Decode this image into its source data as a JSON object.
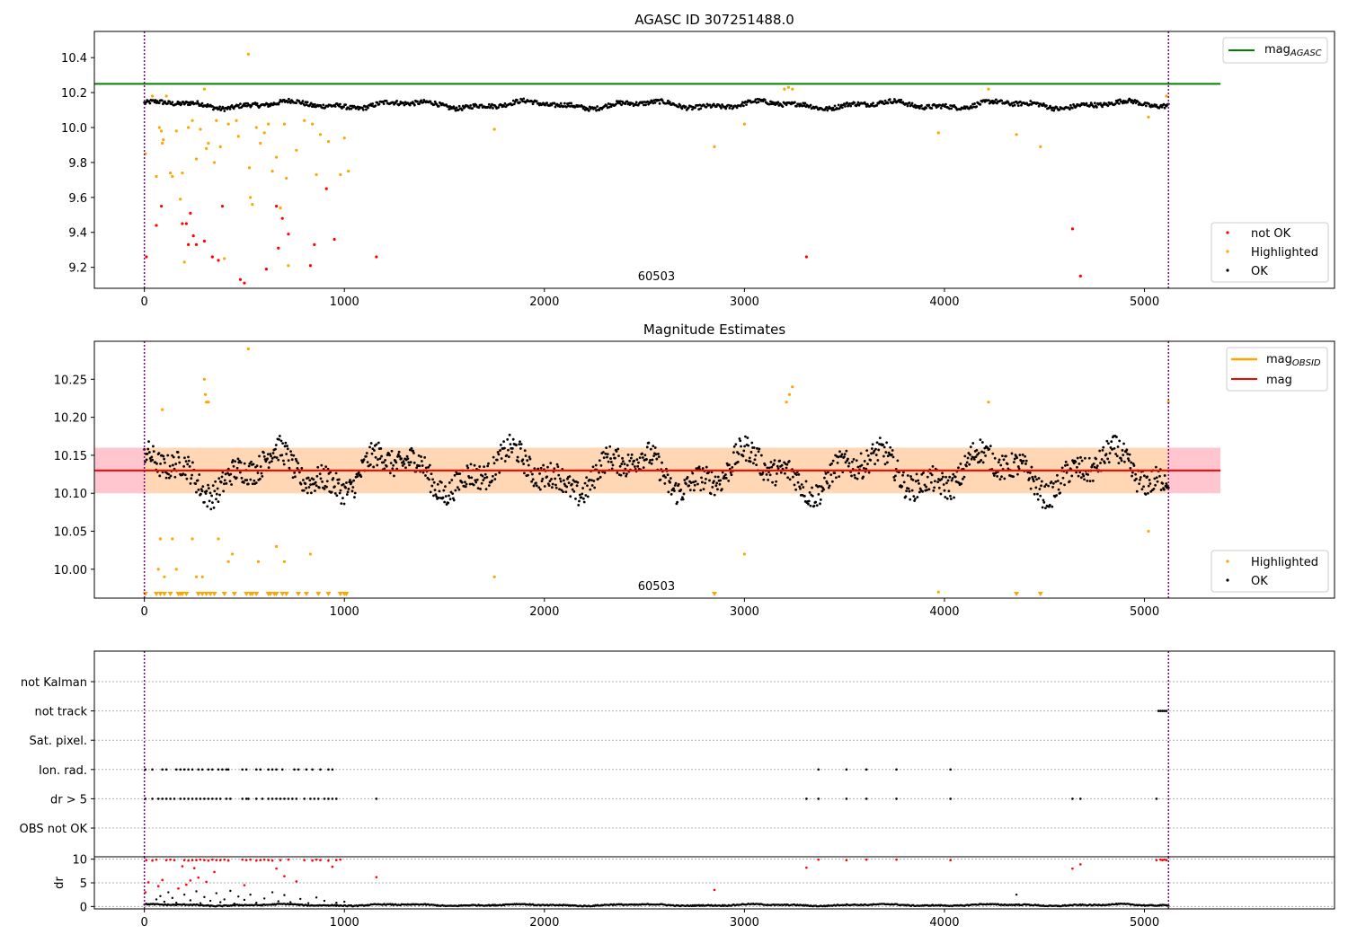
{
  "figure": {
    "top_title": "AGASC ID 307251488.0",
    "middle_title": "Magnitude Estimates"
  },
  "chart_data": [
    {
      "type": "scatter",
      "title": "AGASC ID 307251488.0",
      "xlim": [
        -250,
        5950
      ],
      "ylim": [
        9.08,
        10.55
      ],
      "x_ticks": [
        0,
        1000,
        2000,
        3000,
        4000,
        5000
      ],
      "y_ticks": [
        9.2,
        9.4,
        9.6,
        9.8,
        10.0,
        10.2,
        10.4
      ],
      "y_tick_labels": [
        "9.2",
        "9.4",
        "9.6",
        "9.8",
        "10.0",
        "10.2",
        "10.4"
      ],
      "obsid_boundaries": [
        0,
        5120
      ],
      "obsid_label": {
        "x": 2560,
        "text": "60503"
      },
      "reference_lines": [
        {
          "name": "mag_AGASC",
          "y": 10.25,
          "x_range": [
            -250,
            5380
          ],
          "color": "#008000"
        }
      ],
      "ok_series": {
        "name": "OK",
        "color": "#000000",
        "x_range": [
          0,
          5120
        ],
        "mean": 10.13,
        "wobble": 0.028
      },
      "highlighted": {
        "name": "Highlighted",
        "color": "#ffa500",
        "points": [
          [
            5,
            9.85
          ],
          [
            40,
            10.18
          ],
          [
            60,
            9.72
          ],
          [
            75,
            10.0
          ],
          [
            85,
            9.98
          ],
          [
            90,
            9.91
          ],
          [
            95,
            9.93
          ],
          [
            110,
            10.18
          ],
          [
            130,
            9.74
          ],
          [
            140,
            9.72
          ],
          [
            160,
            9.98
          ],
          [
            180,
            9.59
          ],
          [
            190,
            9.74
          ],
          [
            200,
            9.23
          ],
          [
            220,
            10.0
          ],
          [
            240,
            10.04
          ],
          [
            260,
            9.82
          ],
          [
            280,
            9.99
          ],
          [
            300,
            10.22
          ],
          [
            310,
            9.88
          ],
          [
            320,
            9.91
          ],
          [
            340,
            9.26
          ],
          [
            350,
            9.8
          ],
          [
            360,
            10.04
          ],
          [
            380,
            9.89
          ],
          [
            400,
            9.25
          ],
          [
            420,
            10.02
          ],
          [
            460,
            10.04
          ],
          [
            470,
            9.95
          ],
          [
            520,
            10.42
          ],
          [
            525,
            9.77
          ],
          [
            530,
            9.6
          ],
          [
            540,
            9.56
          ],
          [
            560,
            10.0
          ],
          [
            580,
            9.91
          ],
          [
            600,
            9.97
          ],
          [
            620,
            10.02
          ],
          [
            640,
            9.75
          ],
          [
            660,
            9.83
          ],
          [
            680,
            9.54
          ],
          [
            700,
            10.02
          ],
          [
            710,
            9.71
          ],
          [
            720,
            9.21
          ],
          [
            760,
            9.87
          ],
          [
            800,
            10.04
          ],
          [
            840,
            10.02
          ],
          [
            860,
            9.73
          ],
          [
            880,
            9.96
          ],
          [
            920,
            9.92
          ],
          [
            980,
            9.73
          ],
          [
            1000,
            9.94
          ],
          [
            1020,
            9.75
          ],
          [
            1750,
            9.99
          ],
          [
            2850,
            9.89
          ],
          [
            3000,
            10.02
          ],
          [
            3200,
            10.22
          ],
          [
            3220,
            10.23
          ],
          [
            3240,
            10.22
          ],
          [
            3970,
            9.97
          ],
          [
            4220,
            10.22
          ],
          [
            4360,
            9.96
          ],
          [
            4480,
            9.89
          ],
          [
            5020,
            10.06
          ],
          [
            5110,
            10.18
          ]
        ]
      },
      "not_ok": {
        "name": "not OK",
        "color": "#ff0000",
        "points": [
          [
            10,
            9.26
          ],
          [
            60,
            9.44
          ],
          [
            85,
            9.55
          ],
          [
            190,
            9.45
          ],
          [
            210,
            9.45
          ],
          [
            220,
            9.33
          ],
          [
            230,
            9.51
          ],
          [
            245,
            9.38
          ],
          [
            260,
            9.33
          ],
          [
            300,
            9.35
          ],
          [
            340,
            9.26
          ],
          [
            370,
            9.24
          ],
          [
            390,
            9.55
          ],
          [
            480,
            9.13
          ],
          [
            500,
            9.11
          ],
          [
            610,
            9.19
          ],
          [
            660,
            9.55
          ],
          [
            670,
            9.31
          ],
          [
            690,
            9.48
          ],
          [
            720,
            9.39
          ],
          [
            830,
            9.21
          ],
          [
            850,
            9.33
          ],
          [
            910,
            9.65
          ],
          [
            950,
            9.36
          ],
          [
            1160,
            9.26
          ],
          [
            3310,
            9.26
          ],
          [
            4640,
            9.42
          ],
          [
            4680,
            9.15
          ]
        ]
      },
      "legend": {
        "position": "upper-right + lower-right",
        "entries": [
          "mag_AGASC",
          "not OK",
          "Highlighted",
          "OK"
        ]
      }
    },
    {
      "type": "scatter",
      "title": "Magnitude Estimates",
      "xlim": [
        -250,
        5950
      ],
      "ylim": [
        9.962,
        10.3
      ],
      "x_ticks": [
        0,
        1000,
        2000,
        3000,
        4000,
        5000
      ],
      "y_ticks": [
        10.0,
        10.05,
        10.1,
        10.15,
        10.2,
        10.25
      ],
      "y_tick_labels": [
        "10.00",
        "10.05",
        "10.10",
        "10.15",
        "10.20",
        "10.25"
      ],
      "obsid_boundaries": [
        0,
        5120
      ],
      "obsid_label": {
        "x": 2560,
        "text": "60503"
      },
      "reference_lines": [
        {
          "name": "mag_OBSID",
          "y": 10.13,
          "x_range": [
            0,
            5120
          ],
          "color": "#ffa500"
        },
        {
          "name": "mag",
          "y": 10.13,
          "x_range": [
            -250,
            5380
          ],
          "color": "#ff0000"
        }
      ],
      "bands": [
        {
          "y_range": [
            10.1,
            10.16
          ],
          "x_range": [
            -250,
            5380
          ],
          "color": "#ffc0cb"
        },
        {
          "y_range": [
            10.1,
            10.16
          ],
          "x_range": [
            0,
            5120
          ],
          "color": "#ffd8b0"
        }
      ],
      "ok_series": {
        "name": "OK",
        "color": "#000000",
        "x_range": [
          0,
          5120
        ],
        "mean": 10.128,
        "wobble": 0.038
      },
      "highlighted": {
        "name": "Highlighted",
        "color": "#ffa500",
        "points": [
          [
            70,
            10.0
          ],
          [
            80,
            10.04
          ],
          [
            90,
            10.21
          ],
          [
            100,
            9.99
          ],
          [
            140,
            10.04
          ],
          [
            160,
            10.0
          ],
          [
            240,
            10.04
          ],
          [
            260,
            9.99
          ],
          [
            290,
            9.99
          ],
          [
            300,
            10.25
          ],
          [
            305,
            10.23
          ],
          [
            310,
            10.22
          ],
          [
            320,
            10.22
          ],
          [
            370,
            10.04
          ],
          [
            420,
            10.01
          ],
          [
            440,
            10.02
          ],
          [
            520,
            10.29
          ],
          [
            570,
            10.01
          ],
          [
            660,
            10.03
          ],
          [
            700,
            10.01
          ],
          [
            830,
            10.02
          ],
          [
            1750,
            9.99
          ],
          [
            3000,
            10.02
          ],
          [
            3210,
            10.22
          ],
          [
            3225,
            10.23
          ],
          [
            3240,
            10.24
          ],
          [
            3970,
            9.97
          ],
          [
            4220,
            10.22
          ],
          [
            5020,
            10.05
          ],
          [
            5120,
            10.22
          ]
        ]
      },
      "clipped_low_markers": [
        5,
        60,
        80,
        100,
        130,
        170,
        180,
        190,
        210,
        270,
        290,
        310,
        330,
        350,
        400,
        450,
        510,
        530,
        540,
        560,
        620,
        630,
        650,
        660,
        690,
        710,
        770,
        810,
        870,
        920,
        980,
        1000,
        1010,
        2850,
        4360,
        4480
      ],
      "legend": {
        "position": "upper-right + lower-right",
        "entries": [
          "mag_OBSID",
          "mag",
          "Highlighted",
          "OK"
        ]
      }
    },
    {
      "type": "scatter",
      "title": "",
      "xlim": [
        -250,
        5950
      ],
      "categories": [
        "not Kalman",
        "not track",
        "Sat. pixel.",
        "Ion. rad.",
        "dr > 5",
        "OBS not OK"
      ],
      "flag_points": {
        "not track": [
          5070,
          5080,
          5090,
          5100,
          5110
        ],
        "Ion. rad.": [
          5,
          40,
          90,
          110,
          160,
          180,
          200,
          220,
          240,
          270,
          290,
          320,
          340,
          370,
          390,
          410,
          420,
          490,
          510,
          560,
          580,
          620,
          640,
          660,
          690,
          750,
          770,
          810,
          840,
          880,
          920,
          940,
          3370,
          3510,
          3610,
          3760,
          4030
        ],
        "dr > 5": [
          5,
          40,
          70,
          90,
          110,
          130,
          150,
          180,
          200,
          220,
          240,
          260,
          280,
          300,
          320,
          340,
          360,
          380,
          410,
          430,
          490,
          510,
          520,
          560,
          590,
          620,
          640,
          660,
          680,
          700,
          720,
          740,
          760,
          800,
          830,
          850,
          870,
          900,
          920,
          940,
          960,
          1160,
          3310,
          3370,
          3510,
          3610,
          3760,
          4030,
          4640,
          4680,
          5060
        ]
      }
    },
    {
      "type": "scatter",
      "title": "",
      "xlim": [
        -250,
        5950
      ],
      "ylim": [
        -0.5,
        10.5
      ],
      "x_ticks": [
        0,
        1000,
        2000,
        3000,
        4000,
        5000
      ],
      "y_ticks": [
        0,
        5,
        10
      ],
      "y_tick_labels": [
        "0",
        "5",
        "10"
      ],
      "ylabel": "dr",
      "ok_series": {
        "name": "dr",
        "color": "#000000",
        "x_range": [
          0,
          5120
        ],
        "mean": 0.3,
        "wobble": 0.25
      },
      "black_points": [
        [
          40,
          0.5
        ],
        [
          60,
          1.5
        ],
        [
          80,
          2.2
        ],
        [
          100,
          1.0
        ],
        [
          120,
          3.0
        ],
        [
          140,
          1.8
        ],
        [
          160,
          0.8
        ],
        [
          200,
          2.5
        ],
        [
          230,
          1.3
        ],
        [
          260,
          3.2
        ],
        [
          280,
          0.7
        ],
        [
          300,
          2.0
        ],
        [
          330,
          1.2
        ],
        [
          360,
          2.8
        ],
        [
          380,
          0.9
        ],
        [
          400,
          1.5
        ],
        [
          430,
          3.3
        ],
        [
          450,
          0.6
        ],
        [
          470,
          2.1
        ],
        [
          500,
          1.4
        ],
        [
          530,
          2.5
        ],
        [
          560,
          0.8
        ],
        [
          600,
          1.7
        ],
        [
          640,
          3.0
        ],
        [
          670,
          1.1
        ],
        [
          700,
          2.4
        ],
        [
          730,
          0.9
        ],
        [
          780,
          1.6
        ],
        [
          820,
          0.7
        ],
        [
          860,
          1.9
        ],
        [
          900,
          1.2
        ],
        [
          960,
          0.8
        ],
        [
          1000,
          1.0
        ],
        [
          4360,
          2.5
        ]
      ],
      "red_points": [
        [
          5,
          3.0
        ],
        [
          10,
          9.8
        ],
        [
          20,
          5.1
        ],
        [
          40,
          9.7
        ],
        [
          60,
          9.9
        ],
        [
          70,
          4.3
        ],
        [
          90,
          5.6
        ],
        [
          110,
          9.8
        ],
        [
          130,
          9.9
        ],
        [
          150,
          9.8
        ],
        [
          170,
          3.8
        ],
        [
          190,
          8.5
        ],
        [
          200,
          9.8
        ],
        [
          210,
          4.6
        ],
        [
          220,
          9.7
        ],
        [
          230,
          5.5
        ],
        [
          240,
          9.8
        ],
        [
          250,
          8.1
        ],
        [
          260,
          9.8
        ],
        [
          270,
          6.1
        ],
        [
          280,
          9.9
        ],
        [
          300,
          9.8
        ],
        [
          310,
          5.2
        ],
        [
          320,
          9.7
        ],
        [
          340,
          9.9
        ],
        [
          350,
          7.3
        ],
        [
          360,
          9.8
        ],
        [
          380,
          9.8
        ],
        [
          400,
          9.9
        ],
        [
          420,
          9.7
        ],
        [
          490,
          9.9
        ],
        [
          500,
          4.5
        ],
        [
          510,
          9.8
        ],
        [
          530,
          9.9
        ],
        [
          560,
          9.7
        ],
        [
          580,
          9.8
        ],
        [
          600,
          9.9
        ],
        [
          620,
          9.8
        ],
        [
          640,
          9.7
        ],
        [
          660,
          8.0
        ],
        [
          680,
          9.8
        ],
        [
          700,
          6.4
        ],
        [
          720,
          9.9
        ],
        [
          760,
          5.3
        ],
        [
          800,
          9.8
        ],
        [
          840,
          9.7
        ],
        [
          860,
          9.9
        ],
        [
          880,
          9.8
        ],
        [
          920,
          9.7
        ],
        [
          940,
          8.4
        ],
        [
          960,
          9.8
        ],
        [
          980,
          9.9
        ],
        [
          1160,
          6.2
        ],
        [
          2850,
          3.5
        ],
        [
          3310,
          8.2
        ],
        [
          3370,
          9.9
        ],
        [
          3510,
          9.8
        ],
        [
          3610,
          9.9
        ],
        [
          3760,
          9.9
        ],
        [
          4030,
          9.8
        ],
        [
          4640,
          8.0
        ],
        [
          4680,
          8.9
        ],
        [
          5060,
          9.8
        ],
        [
          5080,
          9.9
        ],
        [
          5090,
          9.8
        ],
        [
          5100,
          9.9
        ],
        [
          5110,
          9.8
        ]
      ]
    }
  ],
  "legends": {
    "top": {
      "mag_main": "mag",
      "mag_sub": "AGASC",
      "not_ok": "not OK",
      "highlighted": "Highlighted",
      "ok": "OK"
    },
    "middle": {
      "mag_obsid_main": "mag",
      "mag_obsid_sub": "OBSID",
      "mag": "mag",
      "highlighted": "Highlighted",
      "ok": "OK"
    }
  },
  "colors": {
    "ok": "#000000",
    "highlighted": "#ffa500",
    "not_ok": "#ff0000",
    "agasc_line": "#008000",
    "mag_line": "#ff0000",
    "obsid_boundary": "#800080"
  }
}
